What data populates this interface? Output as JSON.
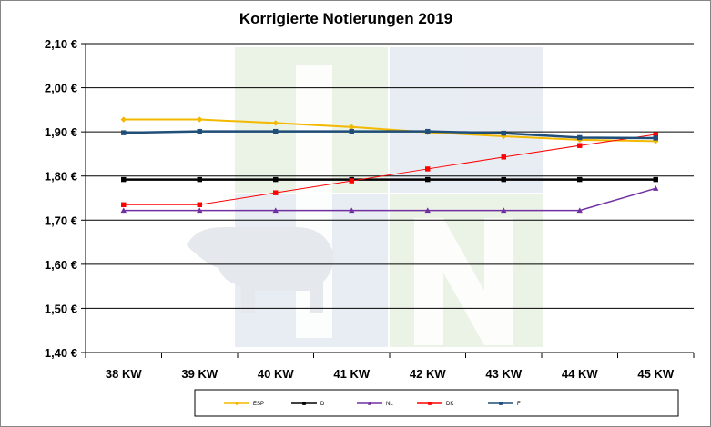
{
  "chart_data": {
    "type": "line",
    "title": "Korrigierte Notierungen 2019",
    "xlabel": "",
    "ylabel": "",
    "categories": [
      "38 KW",
      "39 KW",
      "40 KW",
      "41 KW",
      "42 KW",
      "43 KW",
      "44 KW",
      "45 KW"
    ],
    "y_ticks": [
      "1,40 €",
      "1,50 €",
      "1,60 €",
      "1,70 €",
      "1,80 €",
      "1,90 €",
      "2,00 €",
      "2,10 €"
    ],
    "ylim": [
      1.4,
      2.1
    ],
    "grid": true,
    "legend_position": "bottom",
    "series": [
      {
        "name": "ESP",
        "color": "#F2B900",
        "marker": "diamond",
        "values": [
          1.928,
          1.928,
          1.92,
          1.911,
          1.899,
          1.89,
          1.882,
          1.879
        ]
      },
      {
        "name": "D",
        "color": "#000000",
        "marker": "square",
        "values": [
          1.792,
          1.792,
          1.792,
          1.792,
          1.792,
          1.792,
          1.792,
          1.792
        ]
      },
      {
        "name": "NL",
        "color": "#7030A0",
        "marker": "triangle",
        "values": [
          1.722,
          1.722,
          1.722,
          1.722,
          1.722,
          1.722,
          1.722,
          1.772
        ]
      },
      {
        "name": "DK",
        "color": "#FF0000",
        "marker": "square",
        "values": [
          1.735,
          1.735,
          1.762,
          1.789,
          1.816,
          1.843,
          1.869,
          1.894
        ]
      },
      {
        "name": "F",
        "color": "#1F4E79",
        "marker": "square",
        "values": [
          1.898,
          1.901,
          1.901,
          1.901,
          1.901,
          1.897,
          1.887,
          1.886
        ]
      }
    ]
  }
}
